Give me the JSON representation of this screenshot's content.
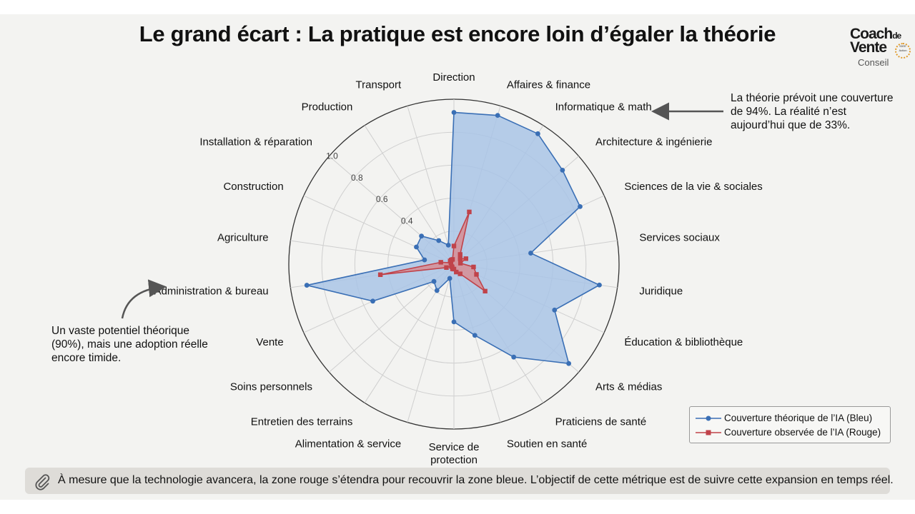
{
  "title": "Le grand écart : La pratique est encore loin d’égaler la théorie",
  "logo": {
    "line1": "Coach",
    "line1_small": "de",
    "line2": "Vente",
    "line3": "Conseil",
    "badge": "IDEE Action"
  },
  "annotations": {
    "right": "La théorie prévoit une couverture de 94%. La réalité n’est aujourd’hui que de 33%.",
    "left": "Un vaste potentiel théorique (90%), mais une adoption réelle encore timide."
  },
  "footer": {
    "text": "À mesure que la technologie avancera, la zone rouge s’étendra pour recouvrir la zone bleue. L’objectif de cette métrique est de suivre cette expansion en temps réel.",
    "icon": "paperclip-icon"
  },
  "chart_data": {
    "type": "radar",
    "title": "Le grand écart : La pratique est encore loin d’égaler la théorie",
    "rlim": [
      0,
      1
    ],
    "rticks": [
      "0.4",
      "0.6",
      "0.8",
      "1.0"
    ],
    "rtick_values": [
      0.4,
      0.6,
      0.8,
      1.0
    ],
    "grid": true,
    "legend": "bottom-right",
    "categories": [
      "Direction",
      "Affaires & finance",
      "Informatique & math",
      "Architecture & ingénierie",
      "Sciences de la vie & sociales",
      "Services sociaux",
      "Juridique",
      "Éducation & bibliothèque",
      "Arts & médias",
      "Praticiens de santé",
      "Soutien en santé",
      "Service de protection",
      "Alimentation & service",
      "Entretien des terrains",
      "Soins personnels",
      "Vente",
      "Administration & bureau",
      "Agriculture",
      "Construction",
      "Installation & réparation",
      "Production",
      "Transport"
    ],
    "series": [
      {
        "name": "Couverture théorique de l’IA (Bleu)",
        "color": "#3a6fb5",
        "fill": "#a9c4e6",
        "marker": "circle",
        "values": [
          0.92,
          0.94,
          0.94,
          0.87,
          0.84,
          0.47,
          0.89,
          0.67,
          0.92,
          0.67,
          0.45,
          0.35,
          0.09,
          0.19,
          0.16,
          0.54,
          0.9,
          0.18,
          0.25,
          0.26,
          0.17,
          0.12
        ]
      },
      {
        "name": "Couverture observée de l’IA (Rouge)",
        "color": "#c0434a",
        "fill": "#d98a8e",
        "marker": "square",
        "values": [
          0.11,
          0.33,
          0.07,
          0.05,
          0.08,
          0.04,
          0.12,
          0.15,
          0.25,
          0.07,
          0.05,
          0.03,
          0.03,
          0.02,
          0.02,
          0.05,
          0.45,
          0.08,
          0.02,
          0.03,
          0.03,
          0.03
        ]
      }
    ]
  }
}
